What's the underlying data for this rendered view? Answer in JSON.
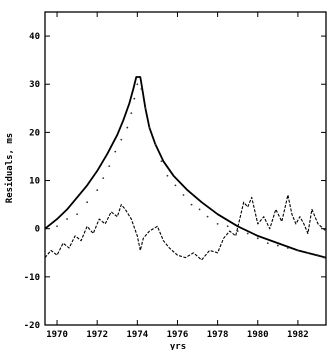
{
  "chart_data": {
    "type": "line",
    "title": "",
    "xlabel": "yrs",
    "ylabel": "Residuals, ms",
    "xlim": [
      1969.4,
      1983.4
    ],
    "ylim": [
      -20,
      45
    ],
    "x_ticks": [
      1970,
      1972,
      1974,
      1976,
      1978,
      1980,
      1982
    ],
    "x_tick_labels": [
      "1970",
      "1972",
      "1974",
      "1976",
      "1978",
      "1980",
      "1982"
    ],
    "y_ticks": [
      -20,
      -10,
      0,
      10,
      20,
      30,
      40
    ],
    "y_tick_labels": [
      "-20",
      "-10",
      "0",
      "10",
      "20",
      "30",
      "40"
    ],
    "grid": false,
    "legend": "none",
    "series": [
      {
        "style": "solid-thick",
        "x": [
          1969.4,
          1970,
          1970.5,
          1971,
          1971.5,
          1972,
          1972.5,
          1973,
          1973.3,
          1973.6,
          1973.8,
          1973.95,
          1974.05,
          1974.15,
          1974.25,
          1974.4,
          1974.6,
          1974.9,
          1975.3,
          1975.8,
          1976.5,
          1977.2,
          1978,
          1979,
          1980,
          1981,
          1982,
          1983.4
        ],
        "y": [
          0,
          2,
          4,
          6.5,
          9,
          12,
          15.5,
          19.5,
          22.5,
          26,
          29,
          31.5,
          31.5,
          31.5,
          29,
          25,
          21,
          17.5,
          14,
          11,
          8,
          5.5,
          3,
          0.5,
          -1.5,
          -3,
          -4.5,
          -6
        ]
      },
      {
        "style": "dashed-noisy",
        "x": [
          1969.4,
          1969.7,
          1970,
          1970.3,
          1970.6,
          1970.9,
          1971.2,
          1971.5,
          1971.8,
          1972.1,
          1972.4,
          1972.7,
          1973,
          1973.2,
          1973.4,
          1973.7,
          1974,
          1974.15,
          1974.3,
          1974.6,
          1975,
          1975.3,
          1975.6,
          1976,
          1976.4,
          1976.8,
          1977.2,
          1977.6,
          1978,
          1978.3,
          1978.6,
          1978.9,
          1979.1,
          1979.3,
          1979.5,
          1979.7,
          1980,
          1980.3,
          1980.6,
          1980.9,
          1981.2,
          1981.5,
          1981.7,
          1981.9,
          1982.1,
          1982.3,
          1982.5,
          1982.7,
          1983,
          1983.4
        ],
        "y": [
          -6,
          -4.5,
          -5.5,
          -3,
          -4,
          -1.5,
          -2.5,
          0.5,
          -1,
          2,
          1,
          3.5,
          2.5,
          5,
          4,
          2,
          -1.5,
          -4.5,
          -2,
          -0.5,
          0.5,
          -2.5,
          -4,
          -5.5,
          -6,
          -5,
          -6.5,
          -4.5,
          -5,
          -2,
          -0.5,
          -1.5,
          2,
          5.5,
          4.5,
          6.5,
          1,
          2.5,
          0,
          4,
          1.5,
          7,
          3,
          1,
          2.5,
          1,
          -1,
          4,
          1,
          -0.5
        ]
      },
      {
        "style": "dots",
        "x": [
          1970,
          1970.5,
          1971,
          1971.5,
          1972,
          1972.3,
          1972.6,
          1972.9,
          1973.2,
          1973.5,
          1973.7,
          1973.85,
          1974,
          1974.2,
          1974.4,
          1974.6,
          1974.9,
          1975.2,
          1975.5,
          1975.9,
          1976.3,
          1976.7,
          1977.1,
          1977.5,
          1978,
          1978.5,
          1979,
          1979.5,
          1980,
          1980.5,
          1981,
          1981.5,
          1982,
          1982.5,
          1983,
          1983.3
        ],
        "y": [
          0.5,
          2,
          3,
          5.5,
          8,
          10.5,
          13,
          16,
          18.5,
          21,
          24,
          27,
          30,
          29,
          25,
          21,
          17.5,
          14,
          11,
          9,
          7,
          5,
          4,
          2.5,
          1,
          0.5,
          -0.5,
          -1,
          -2,
          -3,
          -3.5,
          -4,
          -4.5,
          -5,
          -5.5,
          -6
        ]
      }
    ]
  }
}
